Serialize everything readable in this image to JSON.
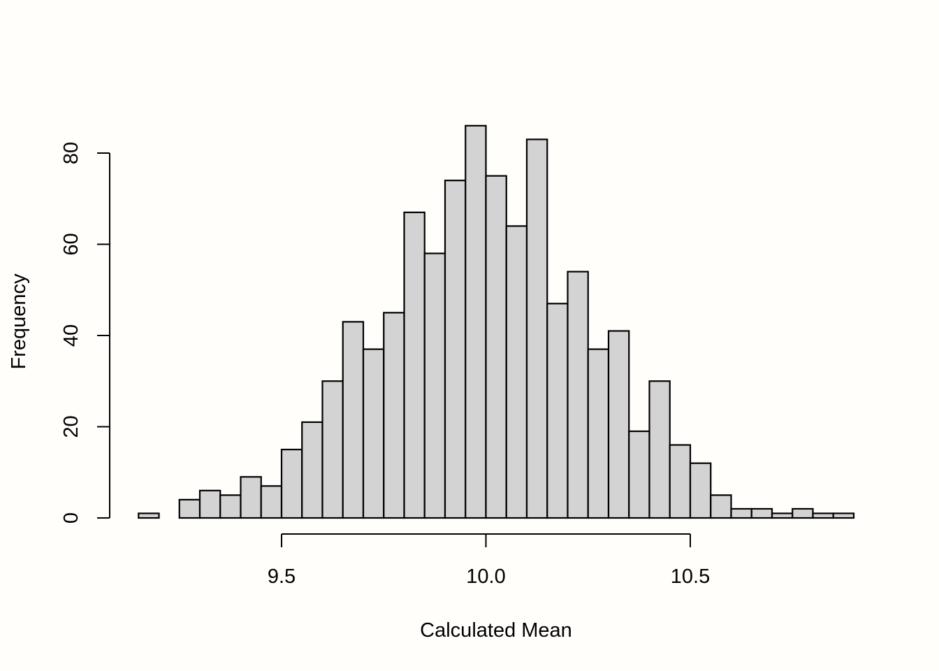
{
  "chart_data": {
    "type": "bar",
    "subtype": "histogram",
    "title": "",
    "xlabel": "Calculated Mean",
    "ylabel": "Frequency",
    "bin_start": 9.15,
    "bin_width": 0.05,
    "values": [
      1,
      0,
      4,
      6,
      5,
      9,
      7,
      15,
      21,
      30,
      43,
      37,
      45,
      67,
      58,
      74,
      86,
      75,
      64,
      83,
      47,
      54,
      37,
      41,
      19,
      30,
      16,
      12,
      5,
      2,
      2,
      1,
      2,
      1,
      1
    ],
    "x_ticks": [
      9.5,
      10.0,
      10.5
    ],
    "x_tick_labels": [
      "9.5",
      "10.0",
      "10.5"
    ],
    "y_ticks": [
      0,
      20,
      40,
      60,
      80
    ],
    "y_tick_labels": [
      "0",
      "20",
      "40",
      "60",
      "80"
    ],
    "xlim": [
      9.15,
      10.9
    ],
    "ylim": [
      0,
      86
    ],
    "bar_color": "#d3d3d3",
    "grid": false
  }
}
